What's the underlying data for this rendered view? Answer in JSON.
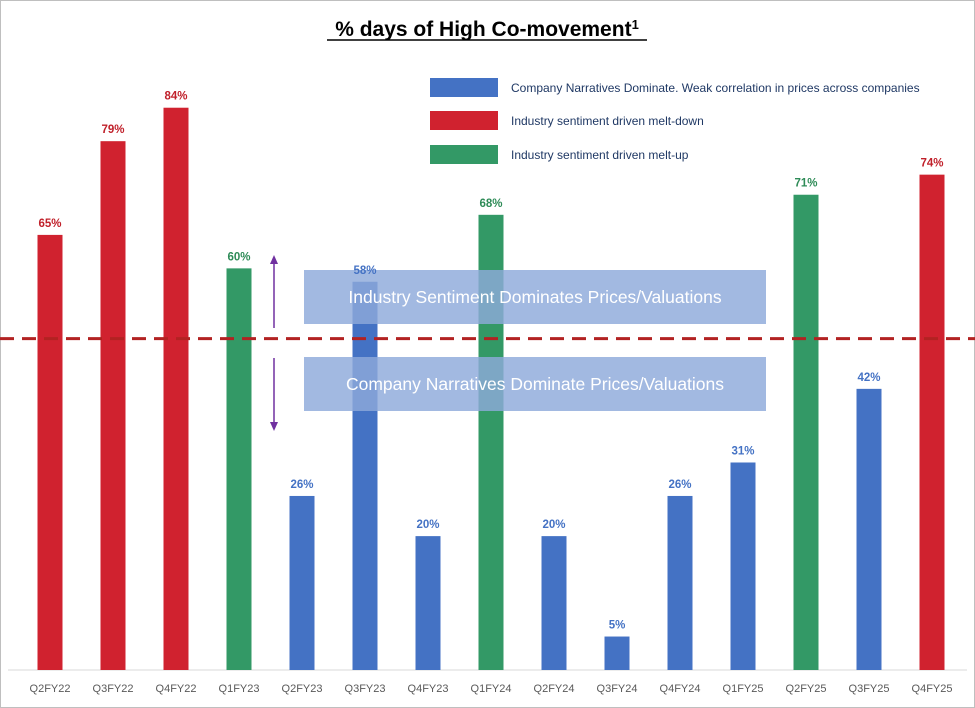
{
  "colors": {
    "blue": "#4472c4",
    "red": "#d0222f",
    "green": "#339966",
    "red_label": "#c0202a",
    "green_label": "#2e8b57",
    "blue_label": "#4472c4",
    "threshold": "#b22222",
    "band": "#8eaadb",
    "arrow": "#7030a0"
  },
  "chart_data": {
    "type": "bar",
    "title": "% days of High Co-movement",
    "title_superscript": "1",
    "categories": [
      "Q2FY22",
      "Q3FY22",
      "Q4FY22",
      "Q1FY23",
      "Q2FY23",
      "Q3FY23",
      "Q4FY23",
      "Q1FY24",
      "Q2FY24",
      "Q3FY24",
      "Q4FY24",
      "Q1FY25",
      "Q2FY25",
      "Q3FY25",
      "Q4FY25"
    ],
    "values": [
      65,
      79,
      84,
      60,
      26,
      58,
      20,
      68,
      20,
      5,
      26,
      31,
      71,
      42,
      74
    ],
    "value_labels": [
      "65%",
      "79%",
      "84%",
      "60%",
      "26%",
      "58%",
      "20%",
      "68%",
      "20%",
      "5%",
      "26%",
      "31%",
      "71%",
      "42%",
      "74%"
    ],
    "bar_types": [
      "red",
      "red",
      "red",
      "green",
      "blue",
      "blue",
      "blue",
      "green",
      "blue",
      "blue",
      "blue",
      "blue",
      "green",
      "blue",
      "red"
    ],
    "ylim": [
      0,
      98
    ],
    "threshold": 49.5,
    "xlabel": "",
    "ylabel": "",
    "grid": false,
    "legend_position": "top-right",
    "legend": [
      {
        "type": "blue",
        "label": "Company Narratives Dominate. Weak correlation in prices across companies"
      },
      {
        "type": "red",
        "label": "Industry sentiment driven melt-down"
      },
      {
        "type": "green",
        "label": "Industry  sentiment driven melt-up"
      }
    ],
    "annotations": {
      "upper": "Industry Sentiment  Dominates Prices/Valuations",
      "lower": "Company Narratives Dominate Prices/Valuations"
    }
  }
}
